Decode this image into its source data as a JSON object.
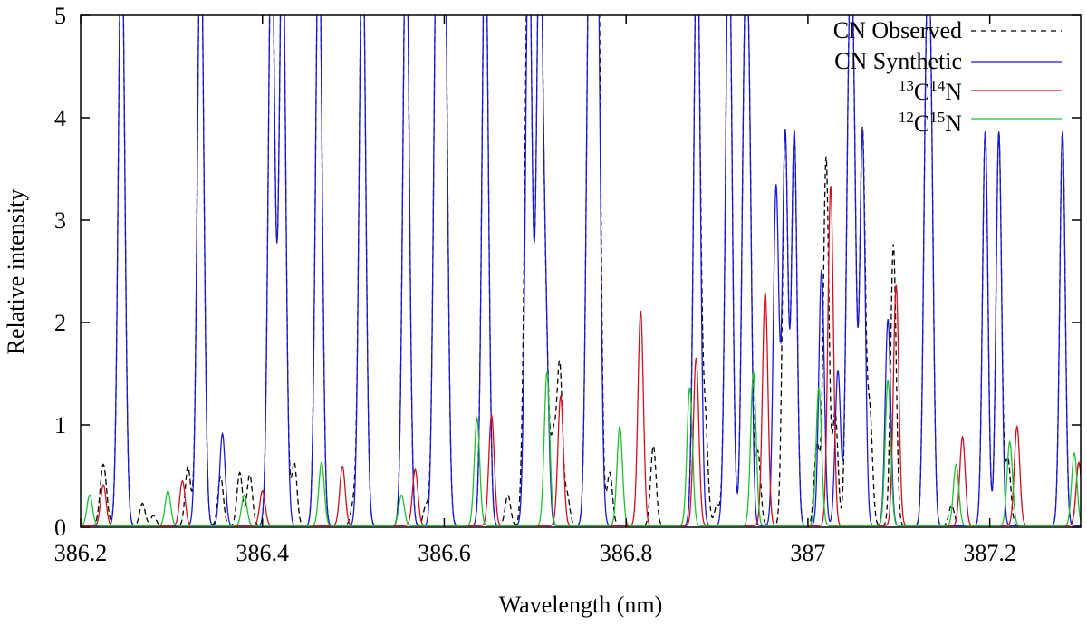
{
  "chart_data": {
    "type": "line",
    "title": "",
    "xlabel": "Wavelength (nm)",
    "ylabel": "Relative intensity",
    "xlim": [
      386.2,
      387.3
    ],
    "ylim": [
      0,
      5
    ],
    "x_ticks": [
      386.2,
      386.4,
      386.6,
      386.8,
      387,
      387.2
    ],
    "x_tick_labels": [
      "386.2",
      "386.4",
      "386.6",
      "386.8",
      "387",
      "387.2"
    ],
    "y_ticks": [
      0,
      1,
      2,
      3,
      4,
      5
    ],
    "y_tick_labels": [
      "0",
      "1",
      "2",
      "3",
      "4",
      "5"
    ],
    "grid": false,
    "legend_position": "top-right",
    "series": [
      {
        "name": "CN Observed",
        "legend_label": "CN Observed",
        "color": "#000000",
        "dash": "dashed",
        "peaks": [
          [
            386.225,
            0.6,
            0.0035
          ],
          [
            386.245,
            6.0,
            0.0035
          ],
          [
            386.268,
            0.22,
            0.003
          ],
          [
            386.28,
            0.1,
            0.003
          ],
          [
            386.318,
            0.58,
            0.003
          ],
          [
            386.332,
            6.0,
            0.0035
          ],
          [
            386.354,
            0.48,
            0.003
          ],
          [
            386.375,
            0.52,
            0.003
          ],
          [
            386.386,
            0.5,
            0.003
          ],
          [
            386.41,
            6.0,
            0.0035
          ],
          [
            386.422,
            6.0,
            0.0035
          ],
          [
            386.435,
            0.62,
            0.003
          ],
          [
            386.462,
            6.0,
            0.0035
          ],
          [
            386.5,
            0.2,
            0.003
          ],
          [
            386.51,
            6.0,
            0.0035
          ],
          [
            386.558,
            6.0,
            0.0035
          ],
          [
            386.58,
            0.2,
            0.003
          ],
          [
            386.592,
            6.0,
            0.0035
          ],
          [
            386.6,
            6.0,
            0.0035
          ],
          [
            386.645,
            6.0,
            0.0035
          ],
          [
            386.67,
            0.3,
            0.003
          ],
          [
            386.688,
            0.72,
            0.003
          ],
          [
            386.693,
            6.0,
            0.0035
          ],
          [
            386.705,
            6.0,
            0.0035
          ],
          [
            386.712,
            1.55,
            0.003
          ],
          [
            386.72,
            0.82,
            0.003
          ],
          [
            386.727,
            1.55,
            0.003
          ],
          [
            386.735,
            0.3,
            0.003
          ],
          [
            386.76,
            6.0,
            0.0035
          ],
          [
            386.768,
            6.0,
            0.0035
          ],
          [
            386.77,
            0.6,
            0.003
          ],
          [
            386.782,
            0.52,
            0.003
          ],
          [
            386.83,
            0.78,
            0.003
          ],
          [
            386.878,
            6.0,
            0.0035
          ],
          [
            386.887,
            1.0,
            0.003
          ],
          [
            386.9,
            0.2,
            0.003
          ],
          [
            386.913,
            6.0,
            0.0035
          ],
          [
            386.93,
            3.85,
            0.003
          ],
          [
            386.935,
            3.85,
            0.003
          ],
          [
            386.945,
            0.72,
            0.003
          ],
          [
            386.975,
            3.85,
            0.003
          ],
          [
            386.985,
            3.85,
            0.003
          ],
          [
            387.01,
            0.8,
            0.003
          ],
          [
            387.02,
            3.6,
            0.003
          ],
          [
            387.03,
            1.1,
            0.003
          ],
          [
            387.045,
            3.85,
            0.003
          ],
          [
            387.05,
            3.85,
            0.003
          ],
          [
            387.06,
            3.85,
            0.003
          ],
          [
            387.068,
            1.1,
            0.003
          ],
          [
            387.094,
            2.75,
            0.003
          ],
          [
            387.13,
            3.85,
            0.003
          ],
          [
            387.135,
            3.85,
            0.003
          ],
          [
            387.158,
            0.2,
            0.003
          ],
          [
            387.195,
            3.85,
            0.003
          ],
          [
            387.21,
            3.85,
            0.003
          ],
          [
            387.22,
            0.65,
            0.003
          ],
          [
            387.28,
            3.85,
            0.003
          ],
          [
            387.298,
            0.62,
            0.003
          ]
        ]
      },
      {
        "name": "CN Synthetic",
        "legend_label": "CN Synthetic",
        "color": "#1a1ad6",
        "dash": "solid",
        "peaks": [
          [
            386.245,
            6.0,
            0.0035
          ],
          [
            386.332,
            6.0,
            0.0035
          ],
          [
            386.356,
            0.9,
            0.003
          ],
          [
            386.41,
            6.0,
            0.0035
          ],
          [
            386.422,
            6.0,
            0.0035
          ],
          [
            386.462,
            6.0,
            0.0035
          ],
          [
            386.51,
            6.0,
            0.0035
          ],
          [
            386.558,
            6.0,
            0.0035
          ],
          [
            386.592,
            6.0,
            0.0035
          ],
          [
            386.6,
            6.0,
            0.0035
          ],
          [
            386.645,
            6.0,
            0.0035
          ],
          [
            386.693,
            6.0,
            0.0035
          ],
          [
            386.705,
            6.0,
            0.0035
          ],
          [
            386.712,
            1.62,
            0.003
          ],
          [
            386.76,
            6.0,
            0.0035
          ],
          [
            386.768,
            6.0,
            0.0035
          ],
          [
            386.878,
            6.0,
            0.0035
          ],
          [
            386.913,
            6.0,
            0.0035
          ],
          [
            386.93,
            3.85,
            0.003
          ],
          [
            386.935,
            3.85,
            0.003
          ],
          [
            386.965,
            3.32,
            0.003
          ],
          [
            386.975,
            3.85,
            0.003
          ],
          [
            386.985,
            3.85,
            0.003
          ],
          [
            387.015,
            2.5,
            0.003
          ],
          [
            387.033,
            1.52,
            0.003
          ],
          [
            387.045,
            3.85,
            0.003
          ],
          [
            387.05,
            3.85,
            0.003
          ],
          [
            387.06,
            3.85,
            0.003
          ],
          [
            387.088,
            2.02,
            0.003
          ],
          [
            387.13,
            3.85,
            0.003
          ],
          [
            387.135,
            3.85,
            0.003
          ],
          [
            387.195,
            3.85,
            0.003
          ],
          [
            387.21,
            3.85,
            0.003
          ],
          [
            387.28,
            3.85,
            0.003
          ]
        ]
      },
      {
        "name": "13C14N",
        "legend_label": {
          "sup1": "13",
          "base1": "C",
          "sup2": "14",
          "base2": "N"
        },
        "color": "#d01020",
        "dash": "solid",
        "peaks": [
          [
            386.225,
            0.4,
            0.003
          ],
          [
            386.312,
            0.44,
            0.003
          ],
          [
            386.4,
            0.34,
            0.003
          ],
          [
            386.488,
            0.58,
            0.003
          ],
          [
            386.568,
            0.55,
            0.003
          ],
          [
            386.652,
            1.08,
            0.003
          ],
          [
            386.728,
            1.27,
            0.003
          ],
          [
            386.816,
            2.1,
            0.003
          ],
          [
            386.877,
            1.64,
            0.003
          ],
          [
            386.953,
            2.28,
            0.003
          ],
          [
            387.025,
            3.32,
            0.003
          ],
          [
            387.097,
            2.35,
            0.003
          ],
          [
            387.17,
            0.87,
            0.003
          ],
          [
            387.23,
            0.97,
            0.003
          ],
          [
            387.298,
            0.62,
            0.003
          ]
        ]
      },
      {
        "name": "12C15N",
        "legend_label": {
          "sup1": "12",
          "base1": "C",
          "sup2": "15",
          "base2": "N"
        },
        "color": "#20c030",
        "dash": "solid",
        "peaks": [
          [
            386.21,
            0.3,
            0.003
          ],
          [
            386.296,
            0.34,
            0.003
          ],
          [
            386.38,
            0.3,
            0.003
          ],
          [
            386.465,
            0.62,
            0.003
          ],
          [
            386.553,
            0.3,
            0.003
          ],
          [
            386.636,
            1.05,
            0.003
          ],
          [
            386.713,
            1.5,
            0.003
          ],
          [
            386.793,
            0.97,
            0.003
          ],
          [
            386.87,
            1.35,
            0.003
          ],
          [
            386.94,
            1.5,
            0.003
          ],
          [
            387.012,
            1.35,
            0.003
          ],
          [
            387.088,
            1.42,
            0.003
          ],
          [
            387.163,
            0.6,
            0.003
          ],
          [
            387.222,
            0.82,
            0.003
          ],
          [
            387.293,
            0.71,
            0.003
          ]
        ]
      }
    ]
  }
}
